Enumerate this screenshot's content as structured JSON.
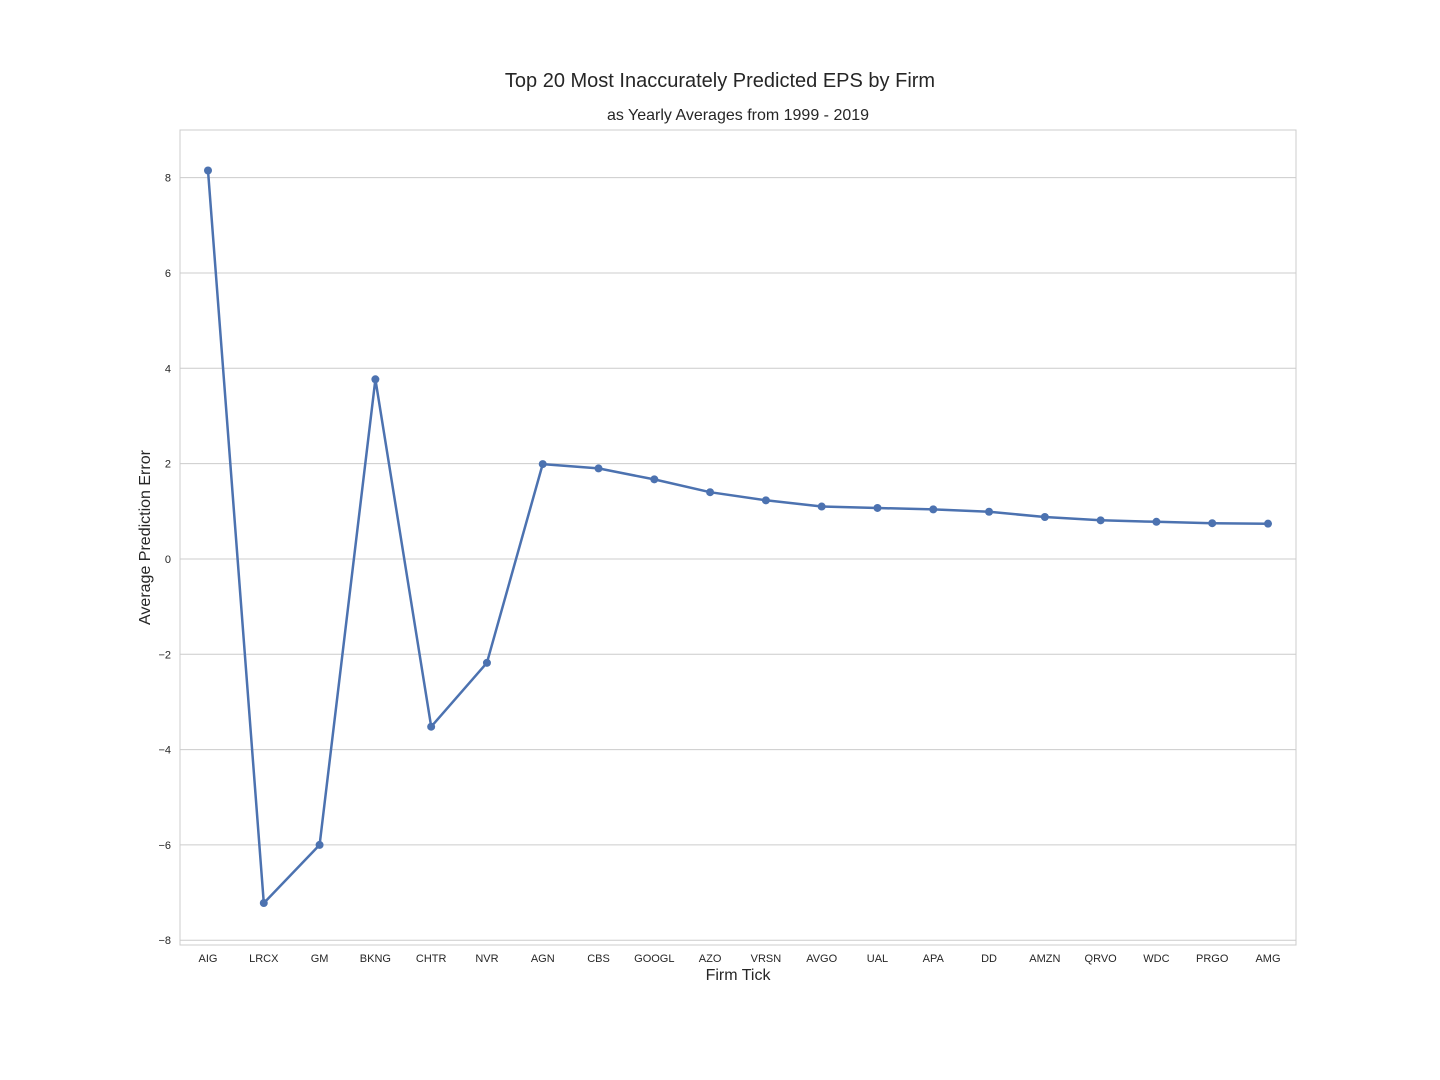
{
  "chart_data": {
    "type": "line",
    "title": "Top 20 Most Inaccurately Predicted EPS by Firm",
    "subtitle": "as Yearly Averages from 1999 - 2019",
    "xlabel": "Firm Tick",
    "ylabel": "Average Prediction Error",
    "categories": [
      "AIG",
      "LRCX",
      "GM",
      "BKNG",
      "CHTR",
      "NVR",
      "AGN",
      "CBS",
      "GOOGL",
      "AZO",
      "VRSN",
      "AVGO",
      "UAL",
      "APA",
      "DD",
      "AMZN",
      "QRVO",
      "WDC",
      "PRGO",
      "AMG"
    ],
    "values": [
      8.15,
      -7.22,
      -6.0,
      3.77,
      -3.52,
      -2.18,
      1.99,
      1.9,
      1.67,
      1.4,
      1.23,
      1.1,
      1.07,
      1.04,
      0.99,
      0.88,
      0.81,
      0.78,
      0.75,
      0.74
    ],
    "ylim": [
      -8.1,
      9.0
    ],
    "yticks": [
      -8,
      -6,
      -4,
      -2,
      0,
      2,
      4,
      6,
      8
    ],
    "ytick_labels": [
      "−8",
      "−6",
      "−4",
      "−2",
      "0",
      "2",
      "4",
      "6",
      "8"
    ],
    "grid": "horizontal",
    "line_color": "#4c72b0",
    "grid_color": "#cccccc",
    "frame_color": "#cccccc"
  }
}
